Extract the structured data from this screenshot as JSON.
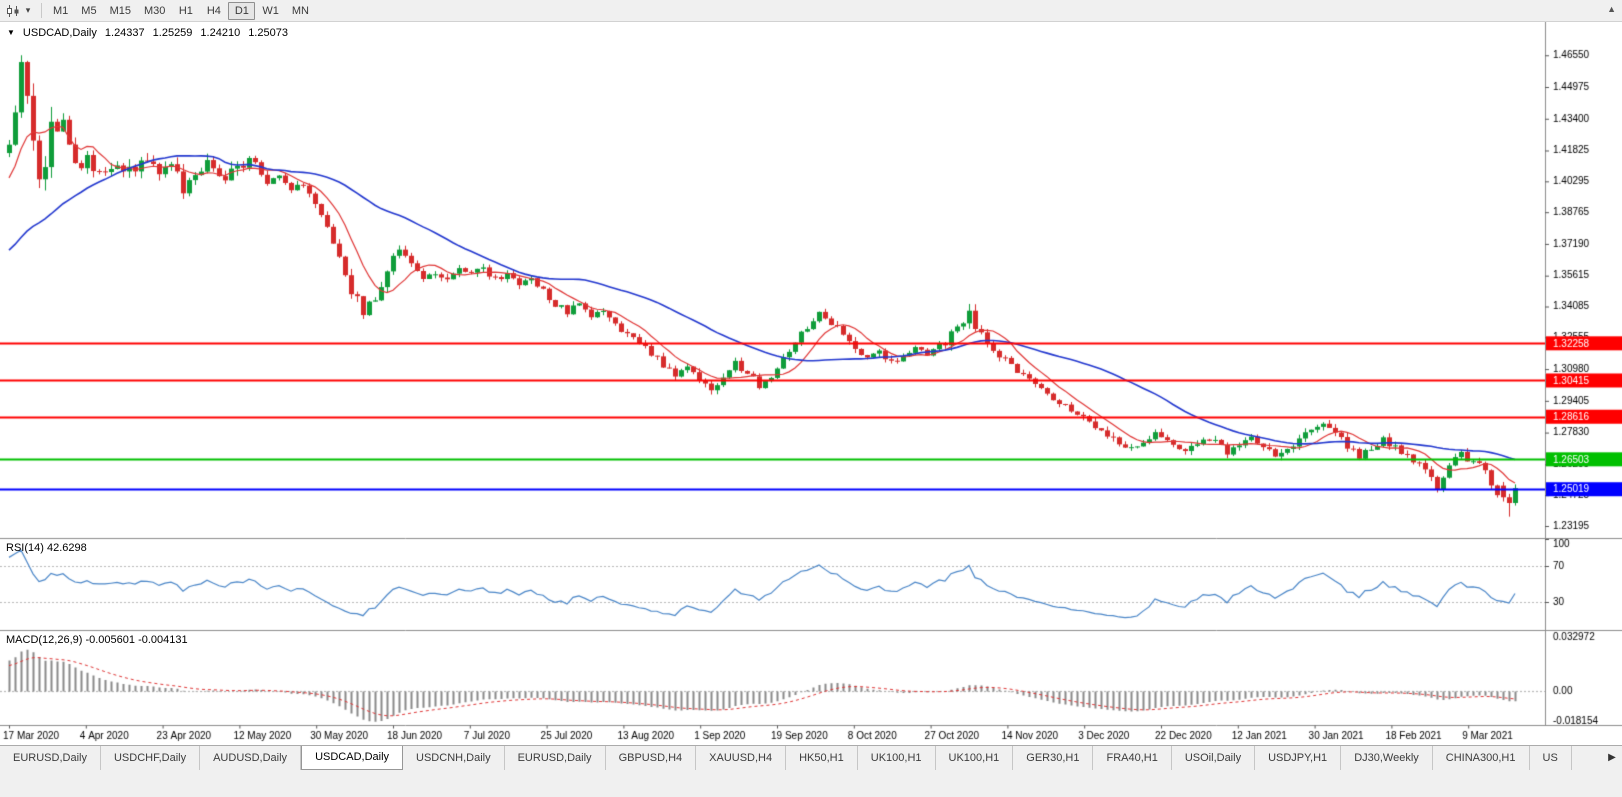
{
  "icons": {
    "series_marker": "▼",
    "toolbar_caret": "▾",
    "tabs_scroll_right": "▶",
    "toolbar_overflow": "▲"
  },
  "toolbar": {
    "timeframes": [
      "M1",
      "M5",
      "M15",
      "M30",
      "H1",
      "H4",
      "D1",
      "W1",
      "MN"
    ],
    "active_timeframe": "D1"
  },
  "info": {
    "symbol_period": "USDCAD,Daily",
    "open": "1.24337",
    "high": "1.25259",
    "low": "1.24210",
    "close": "1.25073"
  },
  "indicators": {
    "rsi_label": "RSI(14) 42.6298",
    "macd_label": "MACD(12,26,9) -0.005601 -0.004131"
  },
  "tabs": {
    "items": [
      "EURUSD,Daily",
      "USDCHF,Daily",
      "AUDUSD,Daily",
      "USDCAD,Daily",
      "USDCNH,Daily",
      "EURUSD,Daily",
      "GBPUSD,H4",
      "XAUUSD,H4",
      "HK50,H1",
      "UK100,H1",
      "UK100,H1",
      "GER30,H1",
      "FRA40,H1",
      "USOil,Daily",
      "USDJPY,H1",
      "DJ30,Weekly",
      "CHINA300,H1",
      "US"
    ],
    "active_index": 3
  },
  "chart_data": {
    "type": "candlestick",
    "symbol": "USDCAD",
    "timeframe": "Daily",
    "current_bar": {
      "open": 1.24337,
      "high": 1.25259,
      "low": 1.2421,
      "close": 1.25073
    },
    "price_range": {
      "min": 1.226,
      "max": 1.482
    },
    "y_axis_ticks": [
      "1.46550",
      "1.44975",
      "1.43400",
      "1.41825",
      "1.40295",
      "1.38765",
      "1.37190",
      "1.35615",
      "1.34085",
      "1.32555",
      "1.30980",
      "1.29405",
      "1.27830",
      "1.26255",
      "1.24725",
      "1.23195"
    ],
    "x_labels": [
      "17 Mar 2020",
      "4 Apr 2020",
      "23 Apr 2020",
      "12 May 2020",
      "30 May 2020",
      "18 Jun 2020",
      "7 Jul 2020",
      "25 Jul 2020",
      "13 Aug 2020",
      "1 Sep 2020",
      "19 Sep 2020",
      "8 Oct 2020",
      "27 Oct 2020",
      "14 Nov 2020",
      "3 Dec 2020",
      "22 Dec 2020",
      "12 Jan 2021",
      "30 Jan 2021",
      "18 Feb 2021",
      "9 Mar 2021"
    ],
    "hlines": [
      {
        "price": 1.32258,
        "label": "1.32258",
        "color": "#ff0000"
      },
      {
        "price": 1.30415,
        "label": "1.30415",
        "color": "#ff0000"
      },
      {
        "price": 1.28616,
        "label": "1.28616",
        "color": "#ff0000"
      },
      {
        "price": 1.26503,
        "label": "1.26503",
        "color": "#00c000"
      },
      {
        "price": 1.25019,
        "label": "1.25019",
        "color": "#0000ff"
      }
    ],
    "candle_count": 252,
    "candle_colors": {
      "up": "#0f9d3a",
      "down": "#d62b2b"
    },
    "ma": {
      "fast_period": 8,
      "slow_period": 34,
      "fast_color": "#e03636",
      "slow_color": "#2338cf"
    },
    "rsi": {
      "period": 14,
      "current": 42.6298,
      "levels": [
        70,
        30
      ],
      "axis_labels": [
        "100",
        "70",
        "30"
      ],
      "color": "#4a86c8"
    },
    "macd": {
      "params": "12,26,9",
      "main_current": -0.005601,
      "signal_current": -0.004131,
      "range": {
        "min": -0.018154,
        "max": 0.032972
      },
      "axis_labels": {
        "top": "0.032972",
        "zero": "0.00",
        "bottom": "-0.018154"
      },
      "hist_color": "#8a8a8a",
      "signal_color": "#e03636"
    },
    "pre_window_anchors": [
      [
        -60,
        1.33
      ],
      [
        -45,
        1.335
      ],
      [
        -30,
        1.341
      ],
      [
        -15,
        1.362
      ],
      [
        -8,
        1.393
      ],
      [
        -1,
        1.412
      ]
    ],
    "price_anchors": [
      [
        0,
        1.424
      ],
      [
        2,
        1.457
      ],
      [
        3,
        1.44
      ],
      [
        5,
        1.403
      ],
      [
        7,
        1.427
      ],
      [
        9,
        1.434
      ],
      [
        11,
        1.41
      ],
      [
        13,
        1.414
      ],
      [
        15,
        1.405
      ],
      [
        17,
        1.411
      ],
      [
        19,
        1.405
      ],
      [
        21,
        1.41
      ],
      [
        23,
        1.414
      ],
      [
        25,
        1.409
      ],
      [
        27,
        1.413
      ],
      [
        29,
        1.399
      ],
      [
        31,
        1.405
      ],
      [
        33,
        1.412
      ],
      [
        35,
        1.404
      ],
      [
        37,
        1.408
      ],
      [
        39,
        1.412
      ],
      [
        41,
        1.414
      ],
      [
        43,
        1.401
      ],
      [
        45,
        1.406
      ],
      [
        47,
        1.398
      ],
      [
        49,
        1.402
      ],
      [
        51,
        1.391
      ],
      [
        53,
        1.379
      ],
      [
        55,
        1.367
      ],
      [
        57,
        1.349
      ],
      [
        59,
        1.338
      ],
      [
        61,
        1.344
      ],
      [
        63,
        1.359
      ],
      [
        65,
        1.37
      ],
      [
        67,
        1.363
      ],
      [
        69,
        1.355
      ],
      [
        71,
        1.358
      ],
      [
        73,
        1.353
      ],
      [
        75,
        1.36
      ],
      [
        77,
        1.356
      ],
      [
        79,
        1.36
      ],
      [
        81,
        1.354
      ],
      [
        83,
        1.358
      ],
      [
        85,
        1.351
      ],
      [
        87,
        1.355
      ],
      [
        89,
        1.348
      ],
      [
        91,
        1.342
      ],
      [
        93,
        1.338
      ],
      [
        95,
        1.342
      ],
      [
        97,
        1.335
      ],
      [
        99,
        1.339
      ],
      [
        101,
        1.332
      ],
      [
        103,
        1.327
      ],
      [
        105,
        1.323
      ],
      [
        107,
        1.318
      ],
      [
        109,
        1.312
      ],
      [
        111,
        1.307
      ],
      [
        113,
        1.31
      ],
      [
        115,
        1.304
      ],
      [
        117,
        1.3
      ],
      [
        119,
        1.306
      ],
      [
        121,
        1.313
      ],
      [
        123,
        1.308
      ],
      [
        125,
        1.302
      ],
      [
        127,
        1.307
      ],
      [
        129,
        1.316
      ],
      [
        131,
        1.324
      ],
      [
        133,
        1.331
      ],
      [
        135,
        1.337
      ],
      [
        137,
        1.333
      ],
      [
        139,
        1.327
      ],
      [
        141,
        1.321
      ],
      [
        143,
        1.315
      ],
      [
        145,
        1.319
      ],
      [
        147,
        1.313
      ],
      [
        149,
        1.317
      ],
      [
        151,
        1.322
      ],
      [
        153,
        1.316
      ],
      [
        155,
        1.321
      ],
      [
        157,
        1.327
      ],
      [
        159,
        1.335
      ],
      [
        160,
        1.34
      ],
      [
        161,
        1.331
      ],
      [
        163,
        1.323
      ],
      [
        165,
        1.317
      ],
      [
        167,
        1.311
      ],
      [
        169,
        1.306
      ],
      [
        171,
        1.302
      ],
      [
        173,
        1.298
      ],
      [
        175,
        1.294
      ],
      [
        177,
        1.29
      ],
      [
        179,
        1.286
      ],
      [
        181,
        1.282
      ],
      [
        183,
        1.278
      ],
      [
        185,
        1.274
      ],
      [
        187,
        1.271
      ],
      [
        189,
        1.274
      ],
      [
        191,
        1.278
      ],
      [
        193,
        1.273
      ],
      [
        195,
        1.269
      ],
      [
        197,
        1.272
      ],
      [
        199,
        1.276
      ],
      [
        201,
        1.273
      ],
      [
        203,
        1.269
      ],
      [
        205,
        1.272
      ],
      [
        207,
        1.275
      ],
      [
        209,
        1.271
      ],
      [
        211,
        1.267
      ],
      [
        213,
        1.271
      ],
      [
        215,
        1.275
      ],
      [
        217,
        1.279
      ],
      [
        219,
        1.282
      ],
      [
        221,
        1.277
      ],
      [
        223,
        1.272
      ],
      [
        225,
        1.267
      ],
      [
        227,
        1.271
      ],
      [
        229,
        1.275
      ],
      [
        231,
        1.271
      ],
      [
        233,
        1.267
      ],
      [
        235,
        1.263
      ],
      [
        237,
        1.255
      ],
      [
        238,
        1.249
      ],
      [
        239,
        1.255
      ],
      [
        240,
        1.261
      ],
      [
        241,
        1.265
      ],
      [
        242,
        1.268
      ],
      [
        243,
        1.265
      ],
      [
        245,
        1.263
      ],
      [
        246,
        1.258
      ],
      [
        247,
        1.252
      ],
      [
        248,
        1.2465
      ],
      [
        249,
        1.2462
      ],
      [
        250,
        1.2434
      ],
      [
        251,
        1.25073
      ]
    ]
  }
}
